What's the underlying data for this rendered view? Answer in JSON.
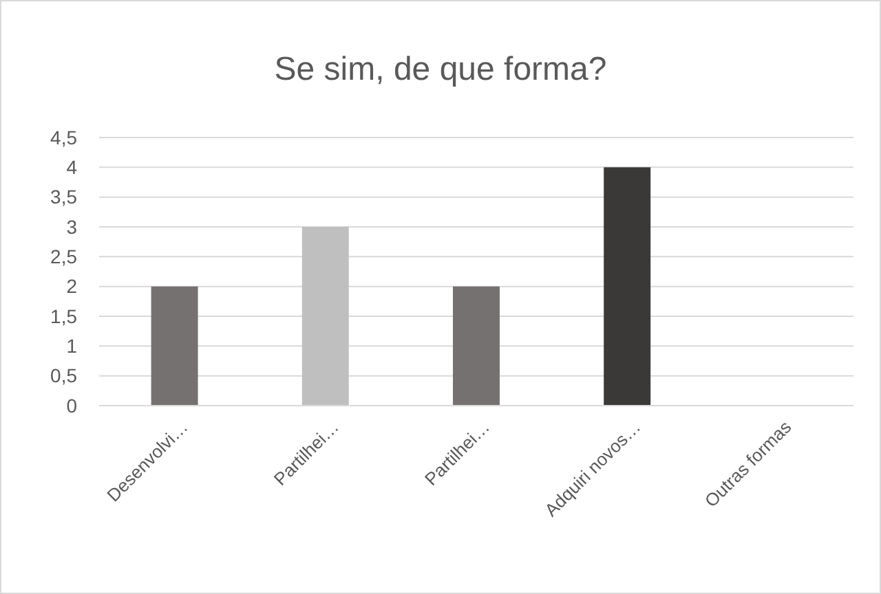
{
  "chart_data": {
    "type": "bar",
    "title": "Se sim, de que forma?",
    "categories": [
      "Desenvolvi…",
      "Partilhei…",
      "Partilhei…",
      "Adquiri novos…",
      "Outras formas"
    ],
    "values": [
      2,
      3,
      2,
      4,
      0
    ],
    "colors": [
      "#767171",
      "#bfbfbf",
      "#767171",
      "#3b3838",
      "#767171"
    ],
    "ylim": [
      0,
      4.5
    ],
    "yticks": [
      0,
      {
        "value": 0.5,
        "label": "0,5"
      },
      1,
      {
        "value": 1.5,
        "label": "1,5"
      },
      2,
      {
        "value": 2.5,
        "label": "2,5"
      },
      3,
      {
        "value": 3.5,
        "label": "3,5"
      },
      4,
      {
        "value": 4.5,
        "label": "4,5"
      }
    ],
    "grid": "y"
  }
}
